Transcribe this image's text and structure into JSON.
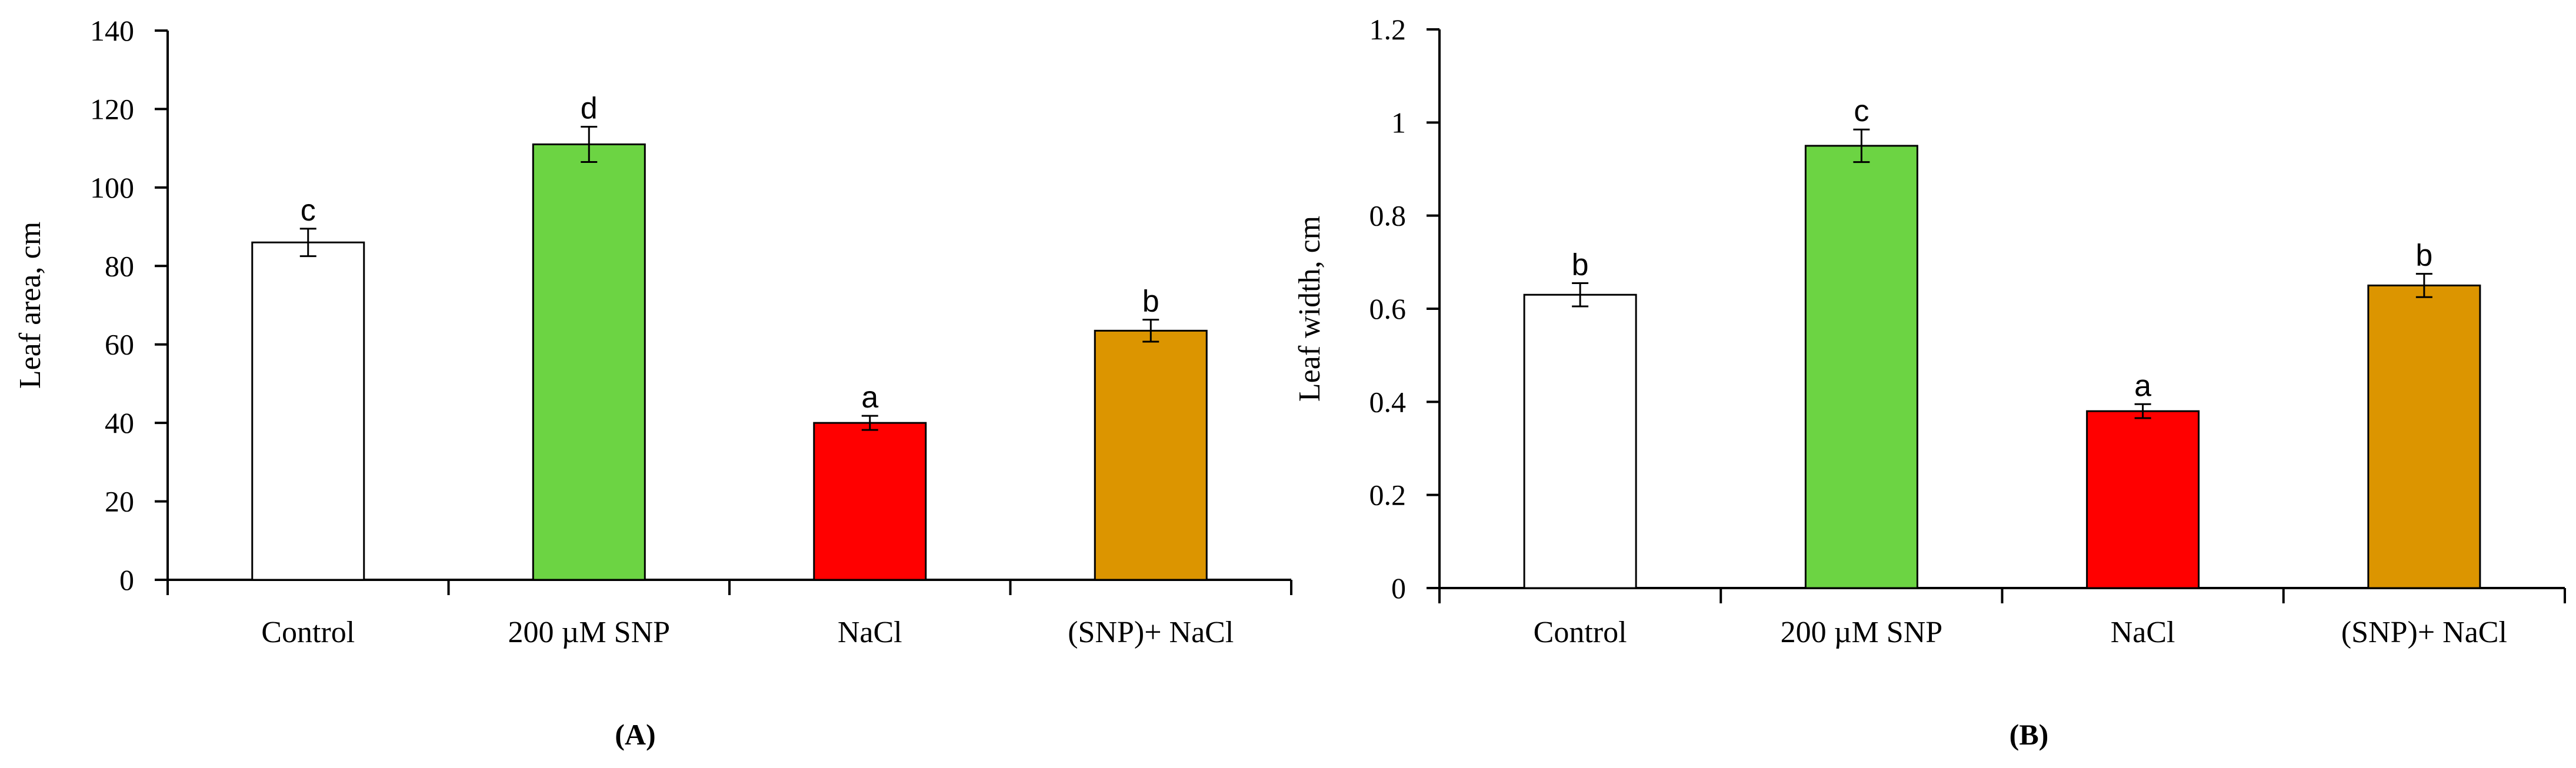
{
  "chart_data": [
    {
      "type": "bar",
      "panel_label": "(A)",
      "categories": [
        "Control",
        "200 µM SNP",
        "NaCl",
        "(SNP)+ NaCl"
      ],
      "values": [
        86,
        111,
        40,
        63.5
      ],
      "errors": [
        3.5,
        4.5,
        1.8,
        2.8
      ],
      "significance_labels": [
        "c",
        "d",
        "a",
        "b"
      ],
      "bar_colors": [
        "#ffffff",
        "#6cd443",
        "#ff0000",
        "#dc9500"
      ],
      "ylabel": "Leaf area, cm",
      "xlabel": "",
      "ylim": [
        0,
        140
      ],
      "yticks": [
        0,
        20,
        40,
        60,
        80,
        100,
        120,
        140
      ],
      "ytick_labels": [
        "0",
        "20",
        "40",
        "60",
        "80",
        "100",
        "120",
        "140"
      ],
      "grid": false
    },
    {
      "type": "bar",
      "panel_label": "(B)",
      "categories": [
        "Control",
        "200 µM SNP",
        "NaCl",
        "(SNP)+ NaCl"
      ],
      "values": [
        0.63,
        0.95,
        0.38,
        0.65
      ],
      "errors": [
        0.025,
        0.035,
        0.015,
        0.025
      ],
      "significance_labels": [
        "b",
        "c",
        "a",
        "b"
      ],
      "bar_colors": [
        "#ffffff",
        "#6cd443",
        "#ff0000",
        "#dc9500"
      ],
      "ylabel": "Leaf width, cm",
      "xlabel": "",
      "ylim": [
        0,
        1.2
      ],
      "yticks": [
        0,
        0.2,
        0.4,
        0.6,
        0.8,
        1.0,
        1.2
      ],
      "ytick_labels": [
        "0",
        "0.2",
        "0.4",
        "0.6",
        "0.8",
        "1",
        "1.2"
      ],
      "grid": false
    }
  ]
}
